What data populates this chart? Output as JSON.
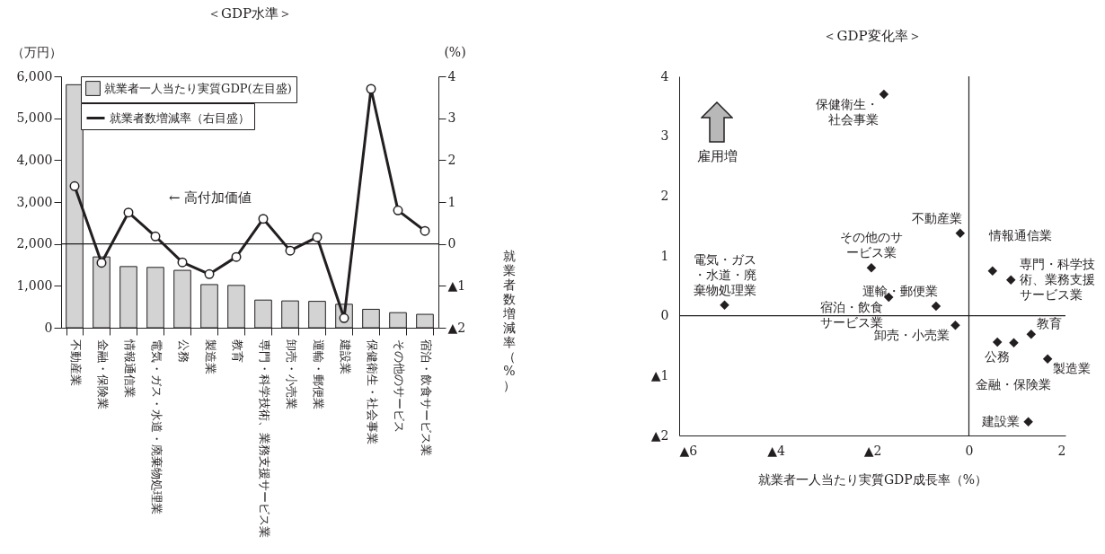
{
  "chart_data": [
    {
      "type": "bar",
      "title": "＜GDP水準＞",
      "ylabel": "（万円）",
      "y2label": "(%)",
      "categories": [
        "不動産業",
        "金融・保険業",
        "情報通信業",
        "電気・ガス・水道・廃棄物処理業",
        "公務",
        "製造業",
        "教育",
        "専門・科学技術、業務支援サービス業",
        "卸売・小売業",
        "運輸・郵便業",
        "建設業",
        "保健衛生・社会事業",
        "その他のサービス",
        "宿泊・飲食サービス業"
      ],
      "series": [
        {
          "name": "就業者一人当たり実質GDP(左目盛)",
          "type": "bar",
          "color": "#d3d3d3",
          "values": [
            5800,
            1690,
            1460,
            1440,
            1370,
            1030,
            1010,
            660,
            640,
            630,
            560,
            440,
            360,
            320
          ]
        },
        {
          "name": "就業者数増減率（右目盛）",
          "type": "line",
          "color": "#231f20",
          "axis": "y2",
          "values": [
            1.38,
            -0.45,
            0.75,
            0.18,
            -0.44,
            -0.72,
            -0.31,
            0.6,
            -0.16,
            0.16,
            -1.77,
            3.7,
            0.8,
            0.31
          ]
        }
      ],
      "ylim": [
        0,
        6000
      ],
      "yticks": [
        0,
        {
          "value": 1000,
          "label": "1,000"
        },
        {
          "value": 2000,
          "label": "2,000"
        },
        {
          "value": 3000,
          "label": "3,000"
        },
        {
          "value": 4000,
          "label": "4,000"
        },
        {
          "value": 5000,
          "label": "5,000"
        },
        {
          "value": 6000,
          "label": "6,000"
        }
      ],
      "y2lim": [
        -2,
        4
      ],
      "y2ticks": [
        {
          "value": -2,
          "label": "▲2"
        },
        {
          "value": -1,
          "label": "▲1"
        },
        0,
        1,
        2,
        3,
        4
      ],
      "ref_lines": [
        {
          "axis": "y2",
          "value": 0
        }
      ],
      "annotations": [
        "← 高付加価値"
      ],
      "legend": "top",
      "marker": "circle",
      "line_style": "solid",
      "grid": false
    },
    {
      "type": "scatter",
      "title": "＜GDP変化率＞",
      "xlabel": "就業者一人当たり実質GDP成長率（%）",
      "ylabel": "就業者数増減率（%）",
      "series": [
        {
          "color": "#231f20",
          "x": [
            -0.18,
            0.93,
            0.49,
            -5.06,
            0.59,
            1.63,
            1.29,
            0.87,
            -0.28,
            -0.68,
            1.23,
            -1.76,
            -2.02,
            -1.66
          ],
          "values": [
            1.38,
            -0.45,
            0.75,
            0.18,
            -0.44,
            -0.72,
            -0.31,
            0.6,
            -0.16,
            0.16,
            -1.77,
            3.7,
            0.8,
            0.31
          ]
        }
      ],
      "xlim": [
        -6,
        2
      ],
      "xticks": [
        {
          "value": -6,
          "label": "▲6"
        },
        {
          "value": -4,
          "label": "▲4"
        },
        {
          "value": -2,
          "label": "▲2"
        },
        0,
        2
      ],
      "ylim": [
        -2,
        4
      ],
      "yticks": [
        {
          "value": -2,
          "label": "▲2"
        },
        {
          "value": -1,
          "label": "▲1"
        },
        0,
        1,
        2,
        3,
        4
      ],
      "ref_lines": [
        {
          "axis": "x",
          "value": 0
        },
        {
          "axis": "y",
          "value": 0
        }
      ],
      "annotations": [
        {
          "text": "不動産業",
          "x": -0.18,
          "y": 1.38
        },
        {
          "text": "金融・保険業",
          "x": 0.93,
          "y": -0.45
        },
        {
          "text": "情報通信業",
          "x": 0.49,
          "y": 0.75
        },
        {
          "text": "電気・ガス・水道・廃棄物処理業",
          "x": -5.06,
          "y": 0.18
        },
        {
          "text": "公務",
          "x": 0.59,
          "y": -0.44
        },
        {
          "text": "製造業",
          "x": 1.63,
          "y": -0.72
        },
        {
          "text": "教育",
          "x": 1.29,
          "y": -0.31
        },
        {
          "text": "専門・科学技術、業務支援サービス業",
          "x": 0.87,
          "y": 0.6
        },
        {
          "text": "卸売・小売業",
          "x": -0.28,
          "y": -0.16
        },
        {
          "text": "運輸・郵便業",
          "x": -0.68,
          "y": 0.16
        },
        {
          "text": "建設業",
          "x": 1.23,
          "y": -1.77
        },
        {
          "text": "保健衛生・社会事業",
          "x": -1.76,
          "y": 3.7
        },
        {
          "text": "その他のサービス業",
          "x": -2.02,
          "y": 0.8
        },
        {
          "text": "宿泊・飲食サービス業",
          "x": -1.66,
          "y": 0.31
        },
        "雇用増"
      ],
      "marker": "diamond",
      "grid": false
    }
  ]
}
